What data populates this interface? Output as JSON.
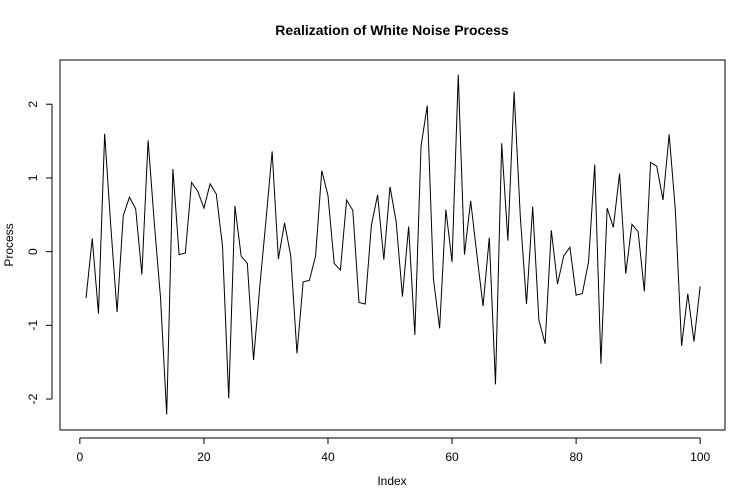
{
  "chart_data": {
    "type": "line",
    "title": "Realization of White Noise Process",
    "xlabel": "Index",
    "ylabel": "Process",
    "xlim": [
      -3.2,
      104.0
    ],
    "ylim": [
      -2.42,
      2.6
    ],
    "xticks": [
      0,
      20,
      40,
      60,
      80,
      100
    ],
    "yticks": [
      -2,
      -1,
      0,
      1,
      2
    ],
    "x_tick_labels": [
      "0",
      "20",
      "40",
      "60",
      "80",
      "100"
    ],
    "y_tick_labels": [
      "-2",
      "-1",
      "0",
      "1",
      "2"
    ],
    "grid": false,
    "line_color": "#000000",
    "series": [
      {
        "x": [
          1,
          2,
          3,
          4,
          5,
          6,
          7,
          8,
          9,
          10,
          11,
          12,
          13,
          14,
          15,
          16,
          17,
          18,
          19,
          20,
          21,
          22,
          23,
          24,
          25,
          26,
          27,
          28,
          29,
          30,
          31,
          32,
          33,
          34,
          35,
          36,
          37,
          38,
          39,
          40,
          41,
          42,
          43,
          44,
          45,
          46,
          47,
          48,
          49,
          50,
          51,
          52,
          53,
          54,
          55,
          56,
          57,
          58,
          59,
          60,
          61,
          62,
          63,
          64,
          65,
          66,
          67,
          68,
          69,
          70,
          71,
          72,
          73,
          74,
          75,
          76,
          77,
          78,
          79,
          80,
          81,
          82,
          83,
          84,
          85,
          86,
          87,
          88,
          89,
          90,
          91,
          92,
          93,
          94,
          95,
          96,
          97,
          98,
          99,
          100
        ],
        "values": [
          -0.63,
          0.18,
          -0.84,
          1.6,
          0.33,
          -0.82,
          0.49,
          0.74,
          0.58,
          -0.31,
          1.51,
          0.39,
          -0.62,
          -2.21,
          1.12,
          -0.04,
          -0.02,
          0.94,
          0.82,
          0.59,
          0.92,
          0.78,
          0.07,
          -1.99,
          0.62,
          -0.06,
          -0.16,
          -1.47,
          -0.48,
          0.42,
          1.36,
          -0.1,
          0.39,
          -0.06,
          -1.38,
          -0.41,
          -0.39,
          -0.06,
          1.1,
          0.76,
          -0.16,
          -0.25,
          0.7,
          0.56,
          -0.69,
          -0.71,
          0.36,
          0.77,
          -0.11,
          0.88,
          0.4,
          -0.61,
          0.34,
          -1.13,
          1.43,
          1.98,
          -0.37,
          -1.04,
          0.57,
          -0.14,
          2.4,
          -0.04,
          0.69,
          -0.04,
          -0.74,
          0.19,
          -1.8,
          1.47,
          0.15,
          2.17,
          0.48,
          -0.71,
          0.61,
          -0.93,
          -1.25,
          0.29,
          -0.44,
          -0.06,
          0.06,
          -0.59,
          -0.57,
          -0.14,
          1.18,
          -1.52,
          0.59,
          0.33,
          1.06,
          -0.3,
          0.37,
          0.27,
          -0.54,
          1.21,
          1.16,
          0.7,
          1.59,
          0.56,
          -1.28,
          -0.57,
          -1.22,
          -0.47
        ]
      }
    ]
  }
}
